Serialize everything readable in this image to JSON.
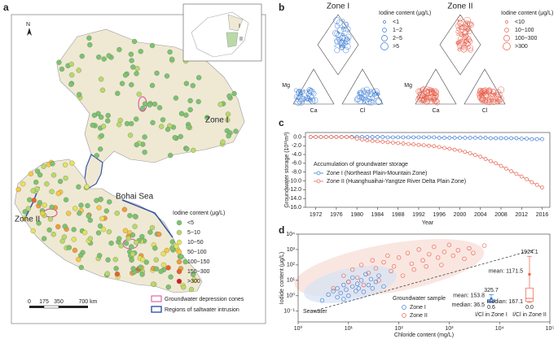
{
  "panel_labels": [
    "a",
    "b",
    "c",
    "d"
  ],
  "map": {
    "zone_labels": [
      "Zone I",
      "Zone II"
    ],
    "sea_label": "Bohai Sea",
    "north": "N",
    "inset_labels": [
      "I",
      "II"
    ],
    "scale_labels": [
      "0",
      "175",
      "350",
      "700 km"
    ],
    "legend_title": "Iodine content (μg/L)",
    "legend": [
      {
        "label": "<5",
        "color": "#7cc36e"
      },
      {
        "label": "5~10",
        "color": "#b9d96a"
      },
      {
        "label": "10~50",
        "color": "#e4e35a"
      },
      {
        "label": "50~100",
        "color": "#f7c842"
      },
      {
        "label": "100~150",
        "color": "#f39a3b"
      },
      {
        "label": "150~300",
        "color": "#e8602c"
      },
      {
        "label": ">300",
        "color": "#d7191c"
      }
    ],
    "cones_label": "Groundwater depression cones",
    "intrusion_label": "Regions of saltwater intrusion"
  },
  "piper": [
    {
      "title": "Zone I",
      "legend_title": "Iodine content (μg/L)",
      "legend": [
        "<1",
        "1~2",
        "2~5",
        ">5"
      ],
      "color": "#3a7bd5"
    },
    {
      "title": "Zone II",
      "legend_title": "Iodine content (μg/L)",
      "legend": [
        "<10",
        "10~100",
        "100~300",
        ">300"
      ],
      "color": "#e8604c"
    }
  ],
  "piper_corner_labels": [
    "Mg",
    "Ca",
    "Cl"
  ],
  "chart_data": [
    {
      "type": "line",
      "x_label": "Year",
      "y_label": "Groundwater storage (10¹¹m³)",
      "legend_title": "Accumulation of groundwater storage",
      "x": [
        1971,
        1972,
        1973,
        1974,
        1975,
        1976,
        1977,
        1978,
        1979,
        1980,
        1981,
        1982,
        1983,
        1984,
        1985,
        1986,
        1987,
        1988,
        1989,
        1990,
        1991,
        1992,
        1993,
        1994,
        1995,
        1996,
        1997,
        1998,
        1999,
        2000,
        2001,
        2002,
        2003,
        2004,
        2005,
        2006,
        2007,
        2008,
        2009,
        2010,
        2011,
        2012,
        2013,
        2014,
        2015,
        2016
      ],
      "series": [
        {
          "name": "Zone I (Northeast Plain-Mountain Zone)",
          "color": "#3a7bd5",
          "values": [
            0,
            0,
            0,
            0,
            0,
            0,
            0,
            0,
            0,
            0,
            0,
            0,
            0,
            0,
            0,
            -0.1,
            -0.1,
            -0.1,
            -0.1,
            -0.1,
            -0.1,
            -0.1,
            -0.1,
            -0.1,
            -0.1,
            -0.2,
            -0.2,
            -0.2,
            -0.2,
            -0.2,
            -0.2,
            -0.2,
            -0.2,
            -0.2,
            -0.2,
            -0.3,
            -0.3,
            -0.3,
            -0.3,
            -0.3,
            -0.3,
            -0.4,
            -0.4,
            -0.5,
            -0.5,
            -0.5
          ]
        },
        {
          "name": "Zone II (Huanghuaihai-Yangtze River Delta Plain Zone)",
          "color": "#e8604c",
          "values": [
            0,
            0,
            0,
            0,
            0,
            0,
            0,
            0,
            -0.1,
            -0.4,
            -0.6,
            -0.8,
            -0.9,
            -1.0,
            -1.1,
            -1.2,
            -1.3,
            -1.4,
            -1.5,
            -1.6,
            -1.7,
            -1.8,
            -1.9,
            -2.0,
            -2.1,
            -2.3,
            -2.5,
            -2.7,
            -2.9,
            -3.1,
            -3.4,
            -3.7,
            -4.1,
            -4.5,
            -5.0,
            -5.5,
            -6.0,
            -6.6,
            -7.2,
            -7.8,
            -8.4,
            -9.0,
            -9.6,
            -10.3,
            -10.9,
            -11.5
          ]
        }
      ],
      "xlim": [
        1970,
        2017.5
      ],
      "xticks": [
        1972,
        1976,
        1980,
        1984,
        1988,
        1992,
        1996,
        2000,
        2004,
        2008,
        2012,
        2016
      ],
      "ylim": [
        -16,
        1
      ],
      "yticks": [
        {
          "value": 0,
          "label": "0.0"
        },
        {
          "value": -2,
          "label": "-2.0"
        },
        {
          "value": -4,
          "label": "-4.0"
        },
        {
          "value": -6,
          "label": "-6.0"
        },
        {
          "value": -8,
          "label": "-8.0"
        },
        {
          "value": -10,
          "label": "-10.0"
        },
        {
          "value": -12,
          "label": "-12.0"
        },
        {
          "value": -14,
          "label": "-14.0"
        },
        {
          "value": -16,
          "label": "-16.0"
        }
      ]
    },
    {
      "type": "scatter",
      "x_label": "Chloride content (mg/L)",
      "y_label": "Iodide content (μg/L)",
      "legend_title": "Groundwater sample",
      "annotation": "Seawater",
      "xlog": true,
      "ylog": true,
      "series": [
        {
          "name": "Zone I",
          "color": "#3a7bd5",
          "x": [
            3,
            4,
            5,
            6,
            6,
            7,
            8,
            8,
            9,
            10,
            10,
            12,
            12,
            14,
            15,
            16,
            18,
            20,
            22,
            25,
            28,
            30,
            35,
            40,
            50
          ],
          "values": [
            0.5,
            1.2,
            2,
            0.8,
            3,
            1.5,
            5,
            0.6,
            2.5,
            8,
            1,
            4,
            15,
            2,
            6,
            3,
            10,
            1.8,
            25,
            5,
            12,
            3,
            8,
            20,
            4
          ]
        },
        {
          "name": "Zone II",
          "color": "#e8604c",
          "x": [
            5,
            8,
            10,
            12,
            15,
            18,
            20,
            25,
            30,
            35,
            40,
            50,
            60,
            70,
            80,
            100,
            120,
            150,
            180,
            200,
            250,
            300,
            350,
            400,
            500,
            600,
            700,
            800,
            1000,
            1200,
            1500,
            2000,
            2500,
            3000,
            5000
          ],
          "values": [
            3,
            20,
            8,
            50,
            15,
            100,
            5,
            30,
            200,
            60,
            10,
            150,
            400,
            40,
            80,
            300,
            20,
            600,
            120,
            50,
            1000,
            200,
            80,
            500,
            1500,
            300,
            100,
            700,
            2000,
            400,
            900,
            250,
            1200,
            600,
            1800
          ]
        }
      ],
      "trend_line": {
        "x": [
          2,
          50000
        ],
        "values": [
          0.1,
          1000
        ]
      },
      "xlim": [
        1,
        100000
      ],
      "xticks": [
        {
          "value": 1,
          "label": "10⁰"
        },
        {
          "value": 10,
          "label": "10¹"
        },
        {
          "value": 100,
          "label": "10²"
        },
        {
          "value": 1000,
          "label": "10³"
        },
        {
          "value": 10000,
          "label": "10⁴"
        },
        {
          "value": 100000,
          "label": "10⁵"
        }
      ],
      "ylim": [
        0.02,
        10000
      ],
      "yticks": [
        {
          "value": 0.1,
          "label": "10⁻¹"
        },
        {
          "value": 1,
          "label": "10⁰"
        },
        {
          "value": 10,
          "label": "10¹"
        },
        {
          "value": 100,
          "label": "10²"
        },
        {
          "value": 1000,
          "label": "10³"
        },
        {
          "value": 10000,
          "label": "10⁴"
        }
      ]
    },
    {
      "type": "box",
      "ylim": [
        0,
        2000
      ],
      "boxes": [
        {
          "label": "I/Cl in Zone I",
          "color": "#3a7bd5",
          "min": 0.6,
          "q1": 10,
          "median": 36.5,
          "q3": 120,
          "max": 325.7,
          "mean": 153.8,
          "mean_label": "mean: 153.8",
          "median_label": "median: 36.5"
        },
        {
          "label": "I/Cl in Zone II",
          "color": "#e8604c",
          "min": 0.0,
          "q1": 40,
          "median": 167.1,
          "q3": 600,
          "max": 1924.1,
          "mean": 1171.5,
          "min_label": "0.0",
          "mean_label": "mean: 1171.5",
          "median_label": "median: 167.1"
        }
      ]
    }
  ]
}
